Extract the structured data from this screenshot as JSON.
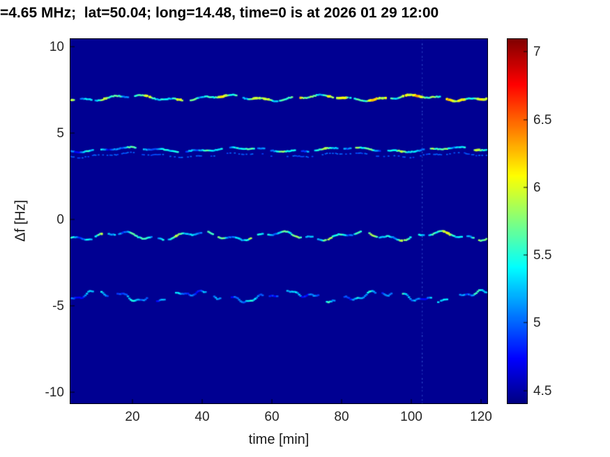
{
  "chart_data": {
    "type": "heatmap",
    "title": "=4.65 MHz;  lat=50.04; long=14.48, time=0 is at 2026 01 29 12:00",
    "xlabel": "time [min]",
    "ylabel": "Δf [Hz]",
    "xlim": [
      2,
      122
    ],
    "ylim": [
      -10.7,
      10.5
    ],
    "x_ticks": [
      20,
      40,
      60,
      80,
      100,
      120
    ],
    "y_ticks": [
      10,
      5,
      0,
      -5,
      -10
    ],
    "grid": false,
    "background_value": 4.45,
    "colorbar": {
      "range": [
        4.4,
        7.1
      ],
      "ticks": [
        7,
        6.5,
        6,
        5.5,
        5,
        4.5
      ],
      "colormap": "jet",
      "position": "right"
    },
    "artifact_time_min": 103,
    "traces": [
      {
        "name": "doppler-trace-plus7",
        "df_center": 7.05,
        "wiggle": [
          {
            "amp": 0.12,
            "period": 27
          },
          {
            "amp": 0.07,
            "period": 8.5
          }
        ],
        "intensity": {
          "base": 5.45,
          "var": 0.5,
          "trend": 0.004
        },
        "coverage": 0.8,
        "seed": 11
      },
      {
        "name": "doppler-trace-plus4",
        "df_center": 4.05,
        "wiggle": [
          {
            "amp": 0.1,
            "period": 31
          },
          {
            "amp": 0.05,
            "period": 9.5
          }
        ],
        "intensity": {
          "base": 5.15,
          "var": 0.45,
          "trend": 0.003
        },
        "coverage": 0.72,
        "seed": 22,
        "companion": {
          "offset": -0.32,
          "intensity": 4.9,
          "coverage": 0.45
        }
      },
      {
        "name": "doppler-trace-minus1",
        "df_center": -0.95,
        "wiggle": [
          {
            "amp": 0.18,
            "period": 23
          },
          {
            "amp": 0.1,
            "period": 7.5
          }
        ],
        "intensity": {
          "base": 5.3,
          "var": 0.5,
          "trend": 0.002
        },
        "coverage": 0.74,
        "seed": 33
      },
      {
        "name": "doppler-trace-minus4p5",
        "df_center": -4.45,
        "wiggle": [
          {
            "amp": 0.22,
            "period": 27
          },
          {
            "amp": 0.12,
            "period": 8
          },
          {
            "amp": 0.06,
            "period": 3.5
          }
        ],
        "intensity": {
          "base": 5.0,
          "var": 0.4,
          "trend": 0.0015
        },
        "coverage": 0.66,
        "seed": 44
      }
    ]
  }
}
